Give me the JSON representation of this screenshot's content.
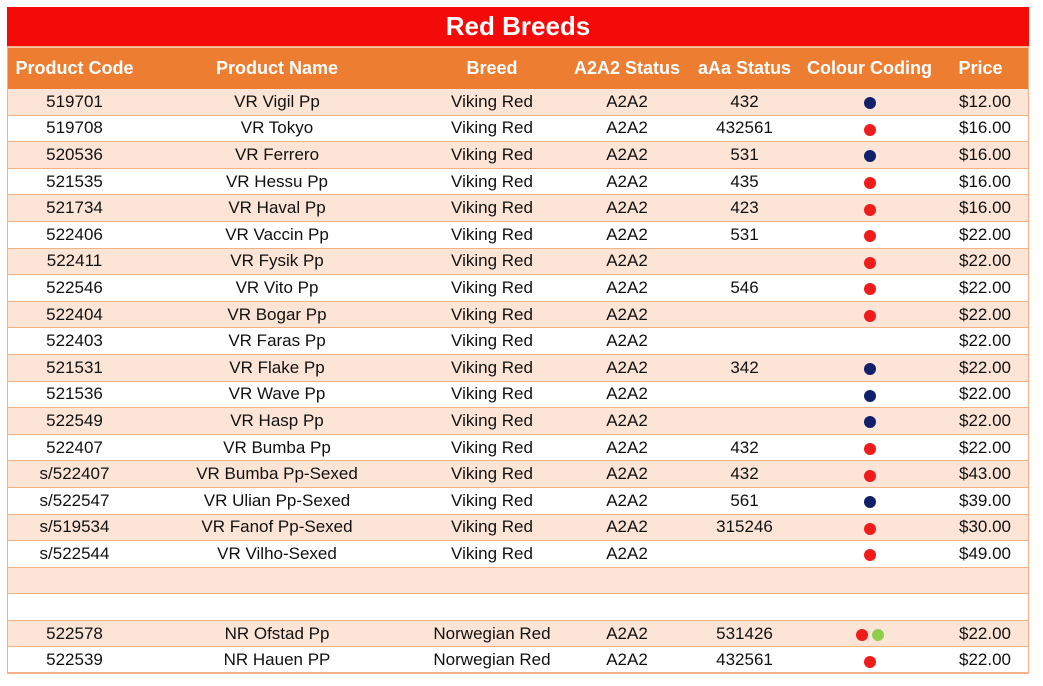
{
  "title": "Red Breeds",
  "columns": [
    "Product Code",
    "Product Name",
    "Breed",
    "A2A2 Status",
    "aAa Status",
    "Colour Coding",
    "Price"
  ],
  "colors": {
    "red": "#f01c1c",
    "navy": "#12206b",
    "green": "#8ccf4d",
    "header": "#ed7d31",
    "title": "#f50a0a",
    "band": "#fce4d6"
  },
  "rows": [
    {
      "code": "519701",
      "name": "VR Vigil Pp",
      "breed": "Viking Red",
      "a2a2": "A2A2",
      "aaa": "432",
      "dots": [
        "navy"
      ],
      "price": "$12.00"
    },
    {
      "code": "519708",
      "name": "VR Tokyo",
      "breed": "Viking Red",
      "a2a2": "A2A2",
      "aaa": "432561",
      "dots": [
        "red"
      ],
      "price": "$16.00"
    },
    {
      "code": "520536",
      "name": "VR Ferrero",
      "breed": "Viking Red",
      "a2a2": "A2A2",
      "aaa": "531",
      "dots": [
        "navy"
      ],
      "price": "$16.00"
    },
    {
      "code": "521535",
      "name": "VR Hessu Pp",
      "breed": "Viking Red",
      "a2a2": "A2A2",
      "aaa": "435",
      "dots": [
        "red"
      ],
      "price": "$16.00"
    },
    {
      "code": "521734",
      "name": "VR Haval Pp",
      "breed": "Viking Red",
      "a2a2": "A2A2",
      "aaa": "423",
      "dots": [
        "red"
      ],
      "price": "$16.00"
    },
    {
      "code": "522406",
      "name": "VR Vaccin Pp",
      "breed": "Viking Red",
      "a2a2": "A2A2",
      "aaa": "531",
      "dots": [
        "red"
      ],
      "price": "$22.00"
    },
    {
      "code": "522411",
      "name": "VR Fysik Pp",
      "breed": "Viking Red",
      "a2a2": "A2A2",
      "aaa": "",
      "dots": [
        "red"
      ],
      "price": "$22.00"
    },
    {
      "code": "522546",
      "name": "VR Vito Pp",
      "breed": "Viking Red",
      "a2a2": "A2A2",
      "aaa": "546",
      "dots": [
        "red"
      ],
      "price": "$22.00"
    },
    {
      "code": "522404",
      "name": "VR Bogar Pp",
      "breed": "Viking Red",
      "a2a2": "A2A2",
      "aaa": "",
      "dots": [
        "red"
      ],
      "price": "$22.00"
    },
    {
      "code": "522403",
      "name": "VR Faras Pp",
      "breed": "Viking Red",
      "a2a2": "A2A2",
      "aaa": "",
      "dots": [],
      "price": "$22.00"
    },
    {
      "code": "521531",
      "name": "VR Flake Pp",
      "breed": "Viking Red",
      "a2a2": "A2A2",
      "aaa": "342",
      "dots": [
        "navy"
      ],
      "price": "$22.00"
    },
    {
      "code": "521536",
      "name": "VR Wave Pp",
      "breed": "Viking Red",
      "a2a2": "A2A2",
      "aaa": "",
      "dots": [
        "navy"
      ],
      "price": "$22.00"
    },
    {
      "code": "522549",
      "name": "VR Hasp Pp",
      "breed": "Viking Red",
      "a2a2": "A2A2",
      "aaa": "",
      "dots": [
        "navy"
      ],
      "price": "$22.00"
    },
    {
      "code": "522407",
      "name": "VR Bumba Pp",
      "breed": "Viking Red",
      "a2a2": "A2A2",
      "aaa": "432",
      "dots": [
        "red"
      ],
      "price": "$22.00"
    },
    {
      "code": "s/522407",
      "name": "VR Bumba Pp-Sexed",
      "breed": "Viking Red",
      "a2a2": "A2A2",
      "aaa": "432",
      "dots": [
        "red"
      ],
      "price": "$43.00"
    },
    {
      "code": "s/522547",
      "name": "VR Ulian Pp-Sexed",
      "breed": "Viking Red",
      "a2a2": "A2A2",
      "aaa": "561",
      "dots": [
        "navy"
      ],
      "price": "$39.00"
    },
    {
      "code": "s/519534",
      "name": "VR Fanof Pp-Sexed",
      "breed": "Viking Red",
      "a2a2": "A2A2",
      "aaa": "315246",
      "dots": [
        "red"
      ],
      "price": "$30.00"
    },
    {
      "code": "s/522544",
      "name": "VR Vilho-Sexed",
      "breed": "Viking Red",
      "a2a2": "A2A2",
      "aaa": "",
      "dots": [
        "red"
      ],
      "price": "$49.00"
    },
    {
      "code": "",
      "name": "",
      "breed": "",
      "a2a2": "",
      "aaa": "",
      "dots": [],
      "price": ""
    },
    {
      "code": "",
      "name": "",
      "breed": "",
      "a2a2": "",
      "aaa": "",
      "dots": [],
      "price": ""
    },
    {
      "code": "522578",
      "name": "NR Ofstad Pp",
      "breed": "Norwegian Red",
      "a2a2": "A2A2",
      "aaa": "531426",
      "dots": [
        "red",
        "green"
      ],
      "price": "$22.00"
    },
    {
      "code": "522539",
      "name": "NR Hauen PP",
      "breed": "Norwegian Red",
      "a2a2": "A2A2",
      "aaa": "432561",
      "dots": [
        "red"
      ],
      "price": "$22.00"
    }
  ]
}
